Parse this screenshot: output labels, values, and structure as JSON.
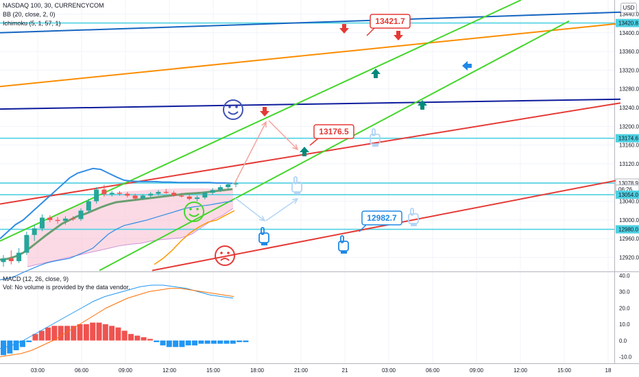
{
  "header": {
    "title": "NASDAQ 100, 30, CURRENCYCOM",
    "bb": "BB (20, close, 2, 0)",
    "ichimoku": "Ichimoku (5, 1, 57, 1)",
    "currency": "USD"
  },
  "macd_legend": {
    "macd": "MACD (12, 26, close, 9)",
    "vol": "Vol: No volume is provided by the data vendor."
  },
  "price_axis": {
    "ticks": [
      "13440.0",
      "13400.0",
      "13360.0",
      "13320.0",
      "13280.0",
      "13240.0",
      "13200.0",
      "13160.0",
      "13120.0",
      "13080.0",
      "13040.0",
      "13000.0",
      "12960.0",
      "12920.0"
    ],
    "tags": [
      {
        "label": "13420.8",
        "value": 13420.8,
        "color": "#4dd0e1",
        "text": "#131722"
      },
      {
        "label": "13174.6",
        "value": 13174.6,
        "color": "#4dd0e1",
        "text": "#131722"
      },
      {
        "label": "13078.9",
        "value": 13078.9,
        "color": "#ffffff",
        "text": "#131722"
      },
      {
        "label": "06:26",
        "value": 13066,
        "color": "#ffffff",
        "text": "#131722"
      },
      {
        "label": "13054.0",
        "value": 13054.0,
        "color": "#4dd0e1",
        "text": "#131722"
      },
      {
        "label": "12980.0",
        "value": 12980.0,
        "color": "#4dd0e1",
        "text": "#131722"
      }
    ]
  },
  "macd_axis": {
    "ticks": [
      "40.0",
      "30.0",
      "20.0",
      "10.0",
      "0.0",
      "-10.0"
    ]
  },
  "time_axis": {
    "labels": [
      "03:00",
      "06:00",
      "09:00",
      "12:00",
      "15:00",
      "18:00",
      "21:00",
      "21",
      "03:00",
      "06:00",
      "09:00",
      "12:00",
      "15:00",
      "18"
    ]
  },
  "callouts": [
    {
      "label": "13421.7",
      "color": "#e53935",
      "value": 13421.7
    },
    {
      "label": "13176.5",
      "color": "#e53935",
      "value": 13176.5
    },
    {
      "label": "12982.7",
      "color": "#1e88e5",
      "value": 12982.7
    }
  ],
  "chart_data": {
    "type": "candlestick",
    "price_range": [
      12890,
      13470
    ],
    "macd_range": [
      -14,
      42
    ],
    "horizontal_levels": [
      13420.8,
      13174.6,
      13078.9,
      13054.0,
      12980.0
    ],
    "candles": [
      {
        "o": 12910,
        "h": 12925,
        "l": 12900,
        "c": 12918
      },
      {
        "o": 12918,
        "h": 12935,
        "l": 12905,
        "c": 12912
      },
      {
        "o": 12912,
        "h": 12940,
        "l": 12908,
        "c": 12930
      },
      {
        "o": 12930,
        "h": 12975,
        "l": 12925,
        "c": 12968
      },
      {
        "o": 12968,
        "h": 12990,
        "l": 12955,
        "c": 12982
      },
      {
        "o": 12982,
        "h": 13012,
        "l": 12976,
        "c": 13005
      },
      {
        "o": 13005,
        "h": 13010,
        "l": 12995,
        "c": 13000
      },
      {
        "o": 13000,
        "h": 13006,
        "l": 12992,
        "c": 12998
      },
      {
        "o": 12998,
        "h": 13008,
        "l": 12990,
        "c": 13003
      },
      {
        "o": 13003,
        "h": 13008,
        "l": 12998,
        "c": 13002
      },
      {
        "o": 13002,
        "h": 13025,
        "l": 12998,
        "c": 13020
      },
      {
        "o": 13020,
        "h": 13045,
        "l": 13015,
        "c": 13040
      },
      {
        "o": 13040,
        "h": 13070,
        "l": 13035,
        "c": 13065
      },
      {
        "o": 13065,
        "h": 13075,
        "l": 13050,
        "c": 13055
      },
      {
        "o": 13055,
        "h": 13062,
        "l": 13050,
        "c": 13058
      },
      {
        "o": 13058,
        "h": 13062,
        "l": 13052,
        "c": 13056
      },
      {
        "o": 13056,
        "h": 13060,
        "l": 13048,
        "c": 13052
      },
      {
        "o": 13052,
        "h": 13056,
        "l": 13042,
        "c": 13046
      },
      {
        "o": 13046,
        "h": 13055,
        "l": 13044,
        "c": 13052
      },
      {
        "o": 13052,
        "h": 13060,
        "l": 13048,
        "c": 13056
      },
      {
        "o": 13056,
        "h": 13064,
        "l": 13052,
        "c": 13060
      },
      {
        "o": 13060,
        "h": 13066,
        "l": 13056,
        "c": 13058
      },
      {
        "o": 13058,
        "h": 13062,
        "l": 13050,
        "c": 13052
      },
      {
        "o": 13052,
        "h": 13058,
        "l": 13048,
        "c": 13050
      },
      {
        "o": 13050,
        "h": 13056,
        "l": 13042,
        "c": 13045
      },
      {
        "o": 13045,
        "h": 13052,
        "l": 13040,
        "c": 13048
      },
      {
        "o": 13048,
        "h": 13060,
        "l": 13044,
        "c": 13058
      },
      {
        "o": 13058,
        "h": 13068,
        "l": 13054,
        "c": 13064
      },
      {
        "o": 13064,
        "h": 13074,
        "l": 13060,
        "c": 13070
      },
      {
        "o": 13070,
        "h": 13080,
        "l": 13066,
        "c": 13076
      },
      {
        "o": 13076,
        "h": 13082,
        "l": 13070,
        "c": 13078
      }
    ],
    "bb_upper": [
      12960,
      12975,
      12990,
      13000,
      13015,
      13030,
      13045,
      13060,
      13075,
      13090,
      13100,
      13105,
      13110,
      13108,
      13100,
      13092,
      13085,
      13083,
      13082,
      13082,
      13082,
      13081,
      13081,
      13080,
      13080,
      13080,
      13080,
      13080,
      13079,
      13079,
      13078
    ],
    "bb_lower": [
      12872,
      12875,
      12880,
      12888,
      12895,
      12902,
      12908,
      12912,
      12915,
      12918,
      12925,
      12932,
      12940,
      12955,
      12970,
      12980,
      12988,
      12992,
      12996,
      13000,
      13005,
      13010,
      13015,
      13020,
      13025,
      13028,
      13030,
      13032,
      13035,
      13038,
      13040
    ],
    "bb_basis": [
      12915,
      12917,
      12922,
      12930,
      12942,
      12955,
      12968,
      12980,
      12992,
      13000,
      13008,
      13013,
      13020,
      13027,
      13033,
      13038,
      13040,
      13042,
      13044,
      13046,
      13048,
      13050,
      13052,
      13054,
      13056,
      13057,
      13058,
      13060,
      13062,
      13064,
      13066
    ],
    "ichimoku_span_a": [
      12960,
      12985,
      13000,
      13015,
      13025,
      13032,
      13040,
      13050,
      13055,
      13060,
      13062,
      13063,
      13065,
      13066,
      13067,
      13068,
      13068,
      13068,
      13067,
      13068,
      13068
    ],
    "ichimoku_span_b": [
      12900,
      12905,
      12910,
      12915,
      12920,
      12925,
      12930,
      12935,
      12940,
      12945,
      12948,
      12950,
      12955,
      12958,
      12960,
      12962,
      12970,
      12985,
      13000,
      13010,
      13025
    ],
    "orange_line": [
      12905,
      12918,
      12935,
      12955,
      12972,
      12985,
      12995,
      13000,
      13010,
      13020
    ],
    "trend_lines": [
      {
        "color": "#1565c0",
        "p1": [
          0,
          13400
        ],
        "p2": [
          905,
          13444
        ]
      },
      {
        "color": "#fb8c00",
        "p1": [
          0,
          13285
        ],
        "p2": [
          905,
          13420
        ]
      },
      {
        "color": "#0d1b9c",
        "p1": [
          0,
          13237
        ],
        "p2": [
          905,
          13258
        ]
      },
      {
        "color": "#e53935",
        "p1": [
          0,
          13034
        ],
        "p2": [
          905,
          13250
        ]
      },
      {
        "color": "#e53935",
        "p1": [
          222,
          12892
        ],
        "p2": [
          905,
          13086
        ]
      },
      {
        "color": "#43d62a",
        "p1": [
          0,
          12955
        ],
        "p2": [
          760,
          13470
        ]
      },
      {
        "color": "#43d62a",
        "p1": [
          145,
          12892
        ],
        "p2": [
          830,
          13425
        ]
      }
    ],
    "macd_line": [
      -5,
      -3,
      0,
      4,
      8,
      12,
      16,
      20,
      24,
      27,
      29,
      31,
      33,
      34,
      34,
      33,
      32,
      30,
      28,
      27,
      26
    ],
    "signal_line": [
      -10,
      -9,
      -8,
      -6,
      -3,
      0,
      4,
      8,
      12,
      16,
      20,
      23,
      26,
      28,
      30,
      31,
      32,
      32,
      31,
      30,
      29,
      28,
      27
    ],
    "histogram": [
      -9,
      -8,
      -6,
      -4,
      -1,
      4,
      6,
      8,
      9,
      9,
      9,
      9,
      10,
      10,
      11,
      11,
      10,
      9,
      8,
      6,
      4,
      3,
      2,
      1,
      -1,
      -3,
      -4,
      -4,
      -4,
      -3,
      -3,
      -2,
      -2,
      -2,
      -2,
      -2,
      -2,
      -1,
      -1
    ]
  }
}
